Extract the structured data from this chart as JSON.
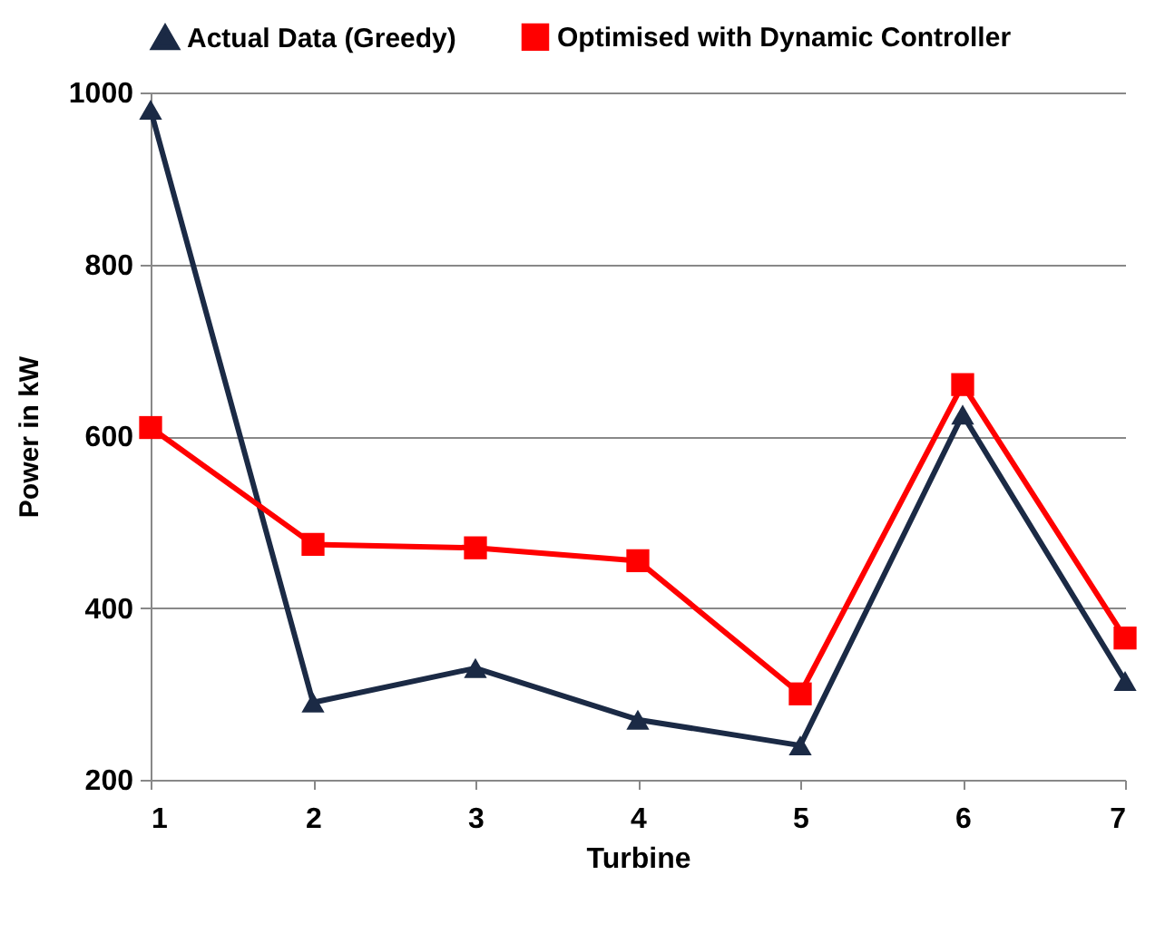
{
  "chart_data": {
    "type": "line",
    "xlabel": "Turbine",
    "ylabel": "Power in kW",
    "x": [
      1,
      2,
      3,
      4,
      5,
      6,
      7
    ],
    "series": [
      {
        "name": "Actual Data (Greedy)",
        "color": "#1b2a45",
        "marker": "triangle",
        "values": [
          980,
          290,
          330,
          270,
          240,
          625,
          315
        ]
      },
      {
        "name": "Optimised with Dynamic Controller",
        "color": "#ff0000",
        "marker": "square",
        "values": [
          610,
          474,
          470,
          455,
          300,
          660,
          365
        ]
      }
    ],
    "xlim": [
      1,
      7
    ],
    "xticks": [
      1,
      2,
      3,
      4,
      5,
      6,
      7
    ],
    "ylim": [
      200,
      1000
    ],
    "yticks": [
      200,
      400,
      600,
      800,
      1000
    ],
    "grid": "y",
    "legend": "top",
    "line_style": "solid"
  }
}
